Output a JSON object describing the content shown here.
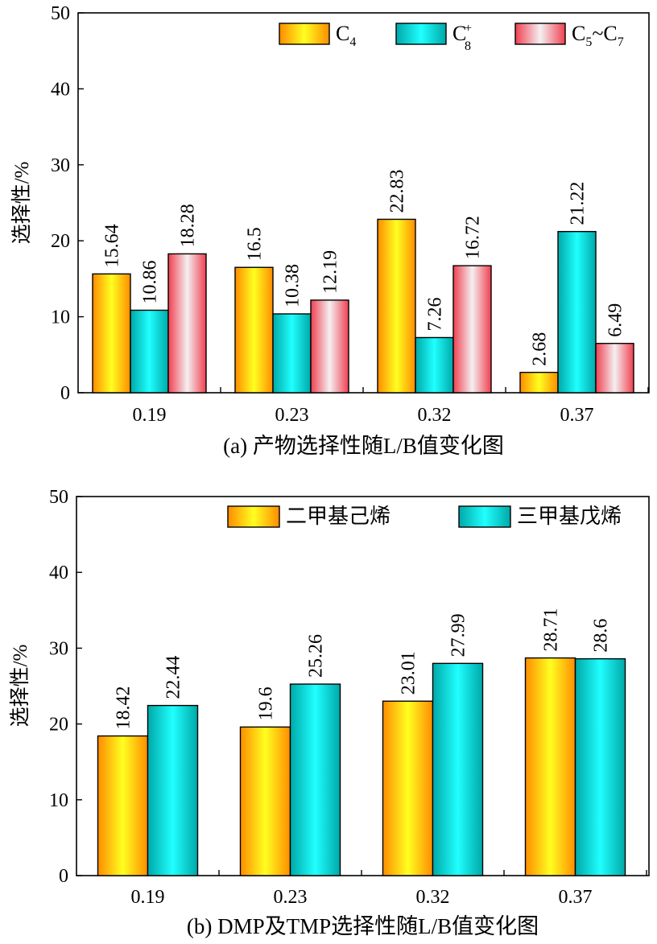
{
  "colors": {
    "c4": "#ffd000",
    "c8": "#00d8d8",
    "c57": "#f07080",
    "axis": "#000000"
  },
  "chart_data": [
    {
      "type": "bar",
      "caption": "(a) 产物选择性随L/B值变化图",
      "ylabel": "选择性/%",
      "xlabel": "",
      "ylim": [
        0,
        50
      ],
      "yticks": [
        "0",
        "10",
        "20",
        "30",
        "40",
        "50"
      ],
      "categories": [
        "0.19",
        "0.23",
        "0.32",
        "0.37"
      ],
      "legend_position": "top-right",
      "series": [
        {
          "name": "C4",
          "legend_main": "C",
          "legend_sub": "4",
          "legend_sup": "",
          "legend_main2": "",
          "legend_sub2": "",
          "gradient": "yellow",
          "values": [
            15.64,
            16.5,
            22.83,
            2.68
          ],
          "labels": [
            "15.64",
            "16.5",
            "22.83",
            "2.68"
          ]
        },
        {
          "name": "C8+",
          "legend_main": "C",
          "legend_sub": "8",
          "legend_sup": "+",
          "legend_main2": "",
          "legend_sub2": "",
          "gradient": "cyan",
          "values": [
            10.86,
            10.38,
            7.26,
            21.22
          ],
          "labels": [
            "10.86",
            "10.38",
            "7.26",
            "21.22"
          ]
        },
        {
          "name": "C5~C7",
          "legend_main": "C",
          "legend_sub": "5",
          "legend_sup": "",
          "legend_main2": "~C",
          "legend_sub2": "7",
          "gradient": "pink",
          "values": [
            18.28,
            12.19,
            16.72,
            6.49
          ],
          "labels": [
            "18.28",
            "12.19",
            "16.72",
            "6.49"
          ]
        }
      ]
    },
    {
      "type": "bar",
      "caption": "(b) DMP及TMP选择性随L/B值变化图",
      "ylabel": "选择性/%",
      "xlabel": "",
      "ylim": [
        0,
        50
      ],
      "yticks": [
        "0",
        "10",
        "20",
        "30",
        "40",
        "50"
      ],
      "categories": [
        "0.19",
        "0.23",
        "0.32",
        "0.37"
      ],
      "legend_position": "top-right",
      "series": [
        {
          "name": "二甲基己烯",
          "legend_main": "二甲基己烯",
          "legend_sub": "",
          "legend_sup": "",
          "legend_main2": "",
          "legend_sub2": "",
          "gradient": "yellow",
          "values": [
            18.42,
            19.6,
            23.01,
            28.71
          ],
          "labels": [
            "18.42",
            "19.6",
            "23.01",
            "28.71"
          ]
        },
        {
          "name": "三甲基戊烯",
          "legend_main": "三甲基戊烯",
          "legend_sub": "",
          "legend_sup": "",
          "legend_main2": "",
          "legend_sub2": "",
          "gradient": "cyan",
          "values": [
            22.44,
            25.26,
            27.99,
            28.6
          ],
          "labels": [
            "22.44",
            "25.26",
            "27.99",
            "28.6"
          ]
        }
      ]
    }
  ]
}
